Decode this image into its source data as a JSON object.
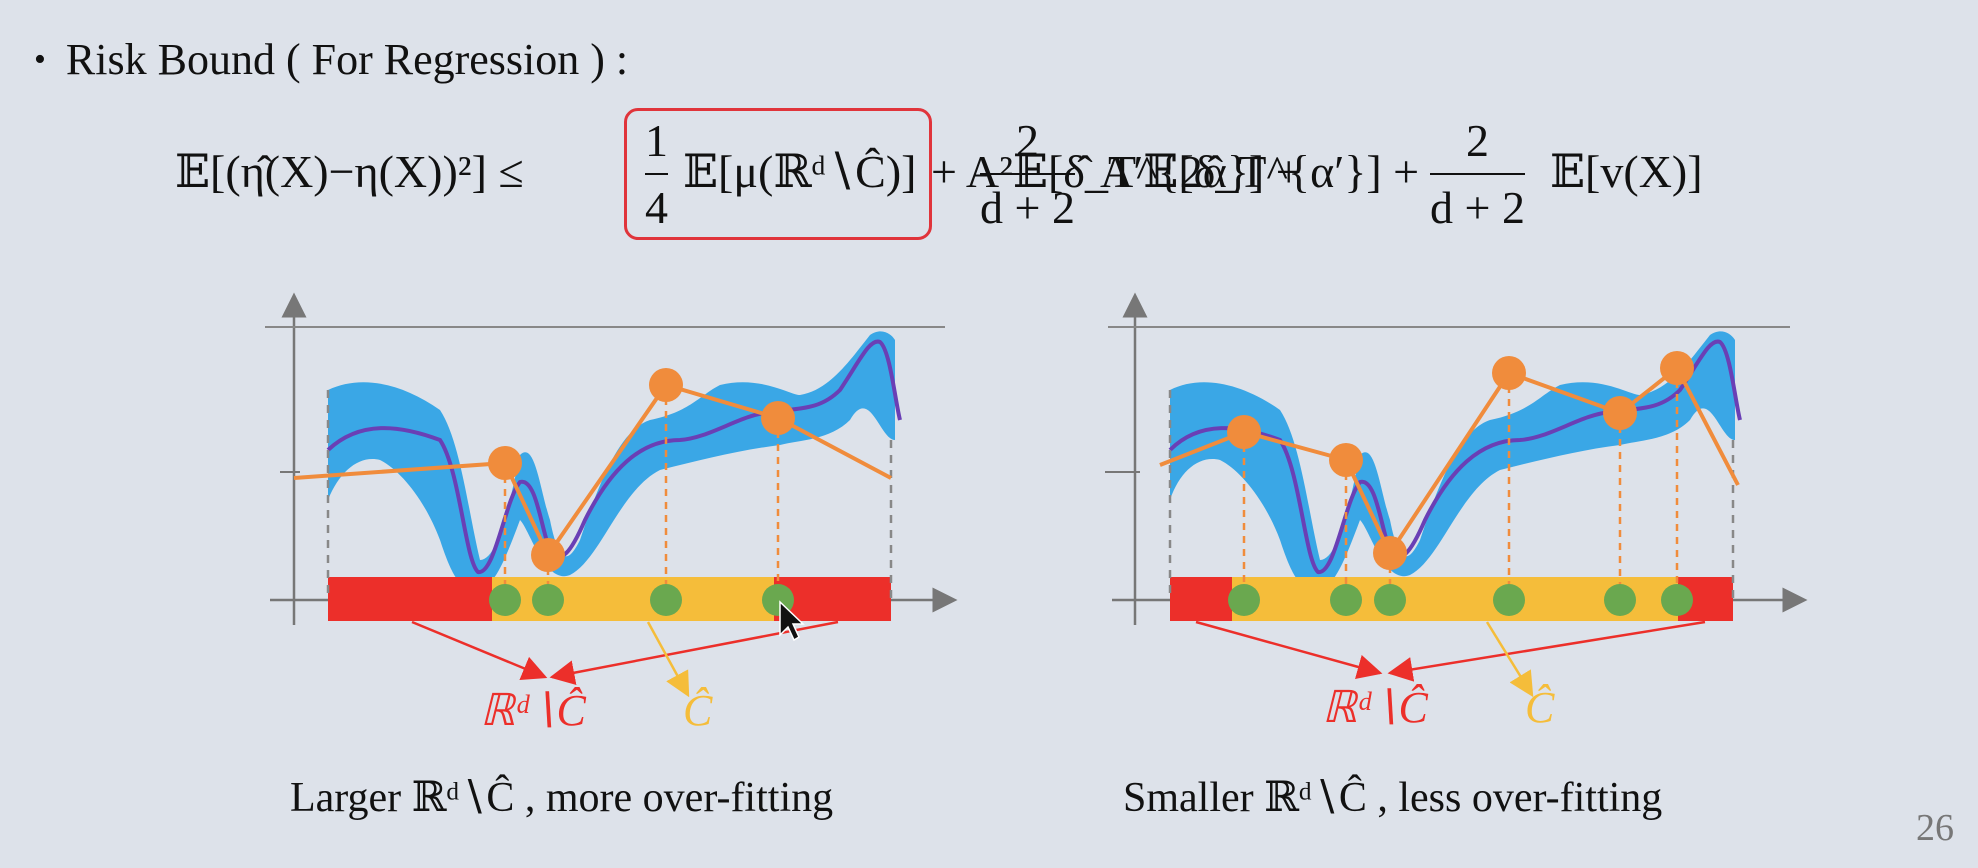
{
  "heading": {
    "bullet": "•",
    "text": "Risk Bound ( For Regression ) :"
  },
  "formula": {
    "lhs": "𝔼[(η̂(X)−η(X))²] ≤",
    "term1_num": "1",
    "term1_den": "4",
    "term1_rest": "𝔼[μ(ℝᵈ∖Ĉ)]",
    "term2": "+ A²𝔼[δ̂_T^{2α}] +",
    "term3_num": "2",
    "term3_den": "d + 2",
    "term3_rest": "A′𝔼[δ̂_T^{α′}] +",
    "term4_num": "2",
    "term4_den": "d + 2",
    "term4_rest": "𝔼[v(X)]"
  },
  "left_panel": {
    "label_complement": "ℝᵈ∖Ĉ",
    "label_c": "Ĉ",
    "caption": "Larger ℝᵈ∖Ĉ  , more over-fitting"
  },
  "right_panel": {
    "label_complement": "ℝᵈ∖Ĉ",
    "label_c": "Ĉ",
    "caption": "Smaller ℝᵈ∖Ĉ  , less over-fitting"
  },
  "colors": {
    "band": "#3aa7e6",
    "curve": "#6a3fb5",
    "fit": "#f08c3c",
    "complement": "#ec2f2a",
    "c_region": "#f5bd3a",
    "sample": "#6aa84f",
    "highlight": "#e0343b"
  },
  "page_number": "26"
}
